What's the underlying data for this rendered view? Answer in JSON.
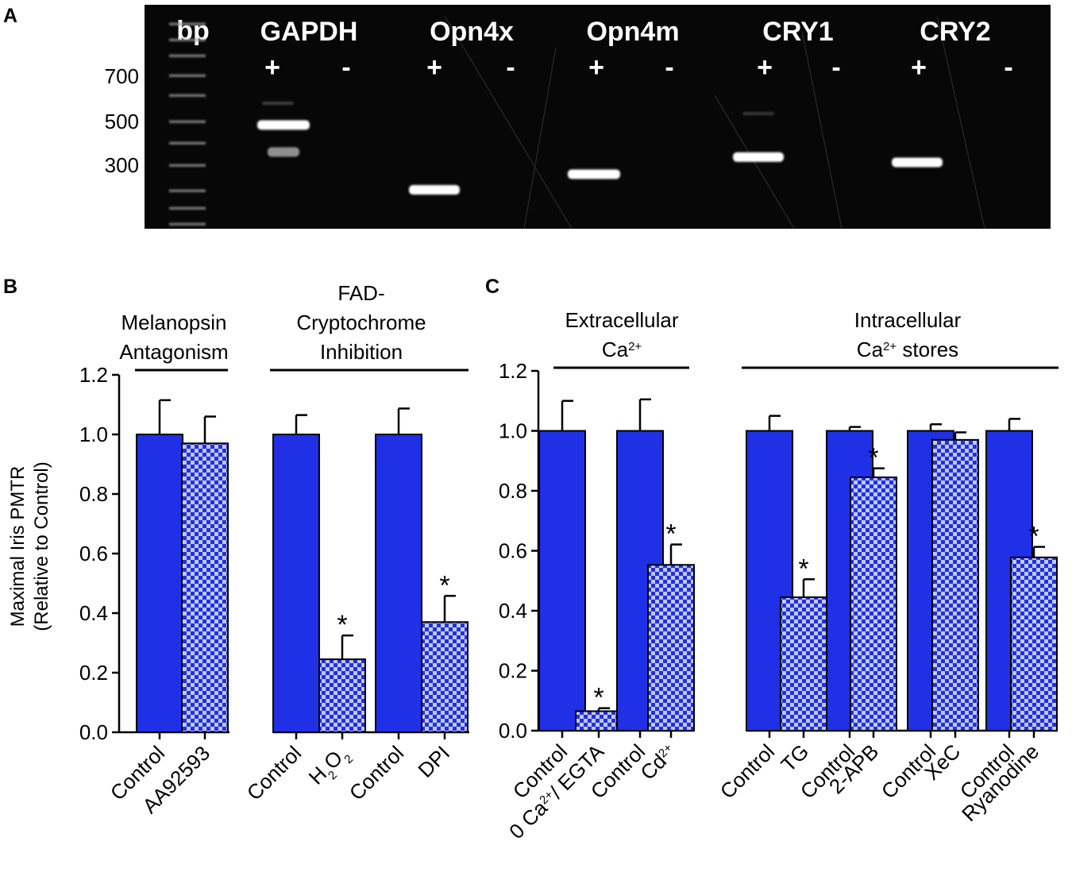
{
  "panelA": {
    "panel_label": "A",
    "ladder_header": "bp",
    "size_labels": [
      "700",
      "500",
      "300"
    ],
    "size_values": [
      700,
      500,
      300
    ],
    "lanes": [
      {
        "gene": "GAPDH",
        "plus": "+",
        "minus": "-",
        "bands": [
          480,
          350
        ]
      },
      {
        "gene": "Opn4x",
        "plus": "+",
        "minus": "-",
        "bands": [
          225
        ]
      },
      {
        "gene": "Opn4m",
        "plus": "+",
        "minus": "-",
        "bands": [
          270
        ]
      },
      {
        "gene": "CRY1",
        "plus": "+",
        "minus": "-",
        "bands": [
          330
        ]
      },
      {
        "gene": "CRY2",
        "plus": "+",
        "minus": "-",
        "bands": [
          310
        ]
      }
    ]
  },
  "chart_data": [
    {
      "type": "bar",
      "panel": "B",
      "panel_label": "B",
      "ylabel": [
        "Maximal Iris PMTR",
        "(Relative to Control)"
      ],
      "ylim": [
        0,
        1.2
      ],
      "yticks": [
        0.0,
        0.2,
        0.4,
        0.6,
        0.8,
        1.0,
        1.2
      ],
      "ytick_labels": [
        "0.0",
        "0.2",
        "0.4",
        "0.6",
        "0.8",
        "1.0",
        "1.2"
      ],
      "groups": [
        {
          "title": [
            "Melanopsin",
            "Antagonism"
          ],
          "categories": [
            "Control",
            "AA92593"
          ]
        },
        {
          "title": [
            "FAD-",
            "Cryptochrome",
            "Inhibition"
          ],
          "categories": [
            "Control",
            "H2O2",
            "Control",
            "DPI"
          ]
        }
      ],
      "bars": [
        {
          "label": "Control",
          "value": 1.0,
          "error": 0.115,
          "pattern": "solid",
          "sig": ""
        },
        {
          "label": "AA92593",
          "value": 0.97,
          "error": 0.09,
          "pattern": "checker",
          "sig": ""
        },
        {
          "label": "Control",
          "value": 1.0,
          "error": 0.065,
          "pattern": "solid",
          "sig": ""
        },
        {
          "label": "H2O2",
          "value": 0.245,
          "error": 0.08,
          "pattern": "checker",
          "sig": "*"
        },
        {
          "label": "Control",
          "value": 1.0,
          "error": 0.087,
          "pattern": "solid",
          "sig": ""
        },
        {
          "label": "DPI",
          "value": 0.37,
          "error": 0.088,
          "pattern": "checker",
          "sig": "*"
        }
      ]
    },
    {
      "type": "bar",
      "panel": "C",
      "panel_label": "C",
      "ylim": [
        0,
        1.2
      ],
      "yticks": [
        0.0,
        0.2,
        0.4,
        0.6,
        0.8,
        1.0,
        1.2
      ],
      "ytick_labels": [
        "0.0",
        "0.2",
        "0.4",
        "0.6",
        "0.8",
        "1.0",
        "1.2"
      ],
      "groups": [
        {
          "title": [
            "Extracellular",
            "Ca2+"
          ],
          "categories": [
            "Control",
            "0 Ca2+/ EGTA",
            "Control",
            "Cd2+"
          ]
        },
        {
          "title": [
            "Intracellular",
            "Ca2+ stores"
          ],
          "categories": [
            "Control",
            "TG",
            "Control",
            "2-APB",
            "Control",
            "XeC",
            "Control",
            "Ryanodine"
          ]
        }
      ],
      "bars": [
        {
          "label": "Control",
          "value": 1.0,
          "error": 0.1,
          "pattern": "solid",
          "sig": ""
        },
        {
          "label": "0 Ca2+/ EGTA",
          "value": 0.065,
          "error": 0.01,
          "pattern": "checker",
          "sig": "*"
        },
        {
          "label": "Control",
          "value": 1.0,
          "error": 0.105,
          "pattern": "solid",
          "sig": ""
        },
        {
          "label": "Cd2+",
          "value": 0.553,
          "error": 0.068,
          "pattern": "checker",
          "sig": "*"
        },
        {
          "label": "Control",
          "value": 1.0,
          "error": 0.05,
          "pattern": "solid",
          "sig": ""
        },
        {
          "label": "TG",
          "value": 0.445,
          "error": 0.06,
          "pattern": "checker",
          "sig": "*"
        },
        {
          "label": "Control",
          "value": 1.0,
          "error": 0.013,
          "pattern": "solid",
          "sig": ""
        },
        {
          "label": "2-APB",
          "value": 0.845,
          "error": 0.03,
          "pattern": "checker",
          "sig": "*"
        },
        {
          "label": "Control",
          "value": 1.0,
          "error": 0.022,
          "pattern": "solid",
          "sig": ""
        },
        {
          "label": "XeC",
          "value": 0.97,
          "error": 0.025,
          "pattern": "checker",
          "sig": ""
        },
        {
          "label": "Control",
          "value": 1.0,
          "error": 0.04,
          "pattern": "solid",
          "sig": ""
        },
        {
          "label": "Ryanodine",
          "value": 0.578,
          "error": 0.035,
          "pattern": "checker",
          "sig": "*"
        }
      ]
    }
  ],
  "colors": {
    "bar_blue": "#1f30e6",
    "checker_light": "#c2c8ee",
    "gel_background": "#070707",
    "band": "#ffffff"
  }
}
